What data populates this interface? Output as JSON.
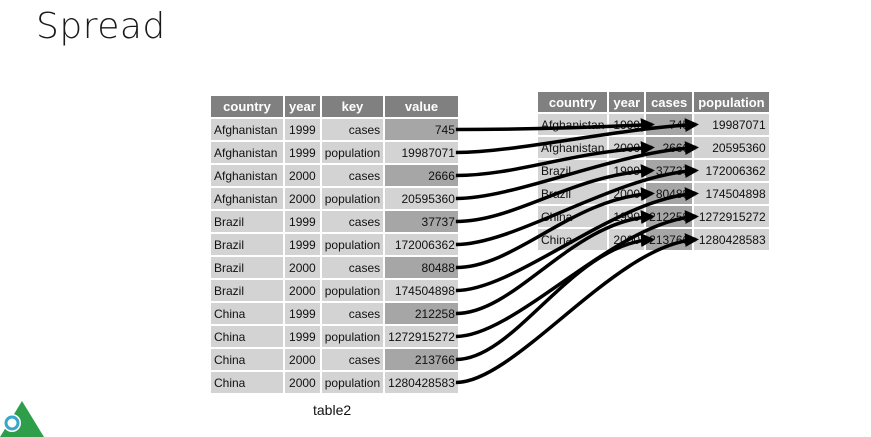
{
  "slide": {
    "title": "Spread",
    "caption": "table2"
  },
  "table2": {
    "headers": [
      "country",
      "year",
      "key",
      "value"
    ],
    "rows": [
      {
        "country": "Afghanistan",
        "year": "1999",
        "key": "cases",
        "value": "745"
      },
      {
        "country": "Afghanistan",
        "year": "1999",
        "key": "population",
        "value": "19987071"
      },
      {
        "country": "Afghanistan",
        "year": "2000",
        "key": "cases",
        "value": "2666"
      },
      {
        "country": "Afghanistan",
        "year": "2000",
        "key": "population",
        "value": "20595360"
      },
      {
        "country": "Brazil",
        "year": "1999",
        "key": "cases",
        "value": "37737"
      },
      {
        "country": "Brazil",
        "year": "1999",
        "key": "population",
        "value": "172006362"
      },
      {
        "country": "Brazil",
        "year": "2000",
        "key": "cases",
        "value": "80488"
      },
      {
        "country": "Brazil",
        "year": "2000",
        "key": "population",
        "value": "174504898"
      },
      {
        "country": "China",
        "year": "1999",
        "key": "cases",
        "value": "212258"
      },
      {
        "country": "China",
        "year": "1999",
        "key": "population",
        "value": "1272915272"
      },
      {
        "country": "China",
        "year": "2000",
        "key": "cases",
        "value": "213766"
      },
      {
        "country": "China",
        "year": "2000",
        "key": "population",
        "value": "1280428583"
      }
    ]
  },
  "table1": {
    "headers": [
      "country",
      "year",
      "cases",
      "population"
    ],
    "rows": [
      {
        "country": "Afghanistan",
        "year": "1999",
        "cases": "745",
        "population": "19987071"
      },
      {
        "country": "Afghanistan",
        "year": "2000",
        "cases": "2666",
        "population": "20595360"
      },
      {
        "country": "Brazil",
        "year": "1999",
        "cases": "37737",
        "population": "172006362"
      },
      {
        "country": "Brazil",
        "year": "2000",
        "cases": "80488",
        "population": "174504898"
      },
      {
        "country": "China",
        "year": "1999",
        "cases": "212258",
        "population": "1272915272"
      },
      {
        "country": "China",
        "year": "2000",
        "cases": "213766",
        "population": "1280428583"
      }
    ]
  },
  "colors": {
    "header_bg": "#808080",
    "cell_bg": "#d3d3d3",
    "highlight_bg": "#a6a6a6",
    "arrow": "#000000",
    "logo_green": "#2e9e4a",
    "logo_teal": "#3aa6c9"
  },
  "icons": {
    "logo": "rstudio-education-logo",
    "arrow": "curved-arrow"
  }
}
